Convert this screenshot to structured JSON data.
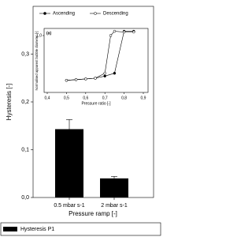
{
  "chart_data": [
    {
      "type": "bar",
      "y_label": "Hysteresis [-]",
      "x_label": "Pressure ramp [-]",
      "categories": [
        "0.5 mbar s-1",
        "2 mbar s-1"
      ],
      "series": [
        {
          "name": "Hysteresis P1",
          "color": "#000000",
          "values": [
            0.143,
            0.04
          ],
          "errors": [
            0.02,
            0.004
          ]
        }
      ],
      "ylim": [
        0,
        0.4
      ],
      "yticks": [
        {
          "value": 0,
          "label": "0,0"
        },
        {
          "value": 0.1,
          "label": "0,1"
        },
        {
          "value": 0.2,
          "label": "0,2"
        },
        {
          "value": 0.3,
          "label": "0,3"
        }
      ],
      "legend": "bottom-left"
    },
    {
      "type": "line",
      "annotation": "(a)",
      "x_label": "Pressure ratio [-]",
      "y_label": "Normalised apparent bubble diameter [-]",
      "series": [
        {
          "name": "Ascending",
          "color": "#000000",
          "marker": "filled",
          "x": [
            0.5,
            0.55,
            0.6,
            0.65,
            0.7,
            0.75,
            0.8,
            0.85
          ],
          "values": [
            0.37,
            0.38,
            0.39,
            0.4,
            0.43,
            0.47,
            1.06,
            1.06
          ]
        },
        {
          "name": "Descending",
          "color": "#000000",
          "marker": "open",
          "x": [
            0.85,
            0.8,
            0.75,
            0.73,
            0.7,
            0.65,
            0.6,
            0.55,
            0.5
          ],
          "values": [
            1.05,
            1.05,
            1.06,
            1.0,
            0.47,
            0.4,
            0.39,
            0.38,
            0.37
          ]
        }
      ],
      "xlim": [
        0.4,
        0.9
      ],
      "xticks": [
        {
          "value": 0.4,
          "label": "0,4"
        },
        {
          "value": 0.5,
          "label": "0,5"
        },
        {
          "value": 0.6,
          "label": "0,6"
        },
        {
          "value": 0.7,
          "label": "0,7"
        },
        {
          "value": 0.8,
          "label": "0,8"
        },
        {
          "value": 0.9,
          "label": "0,9"
        }
      ],
      "ylim": [
        0.2,
        1.1
      ],
      "yticks": [
        {
          "value": 1.0,
          "label": "1,0"
        }
      ],
      "legend": "top"
    }
  ]
}
